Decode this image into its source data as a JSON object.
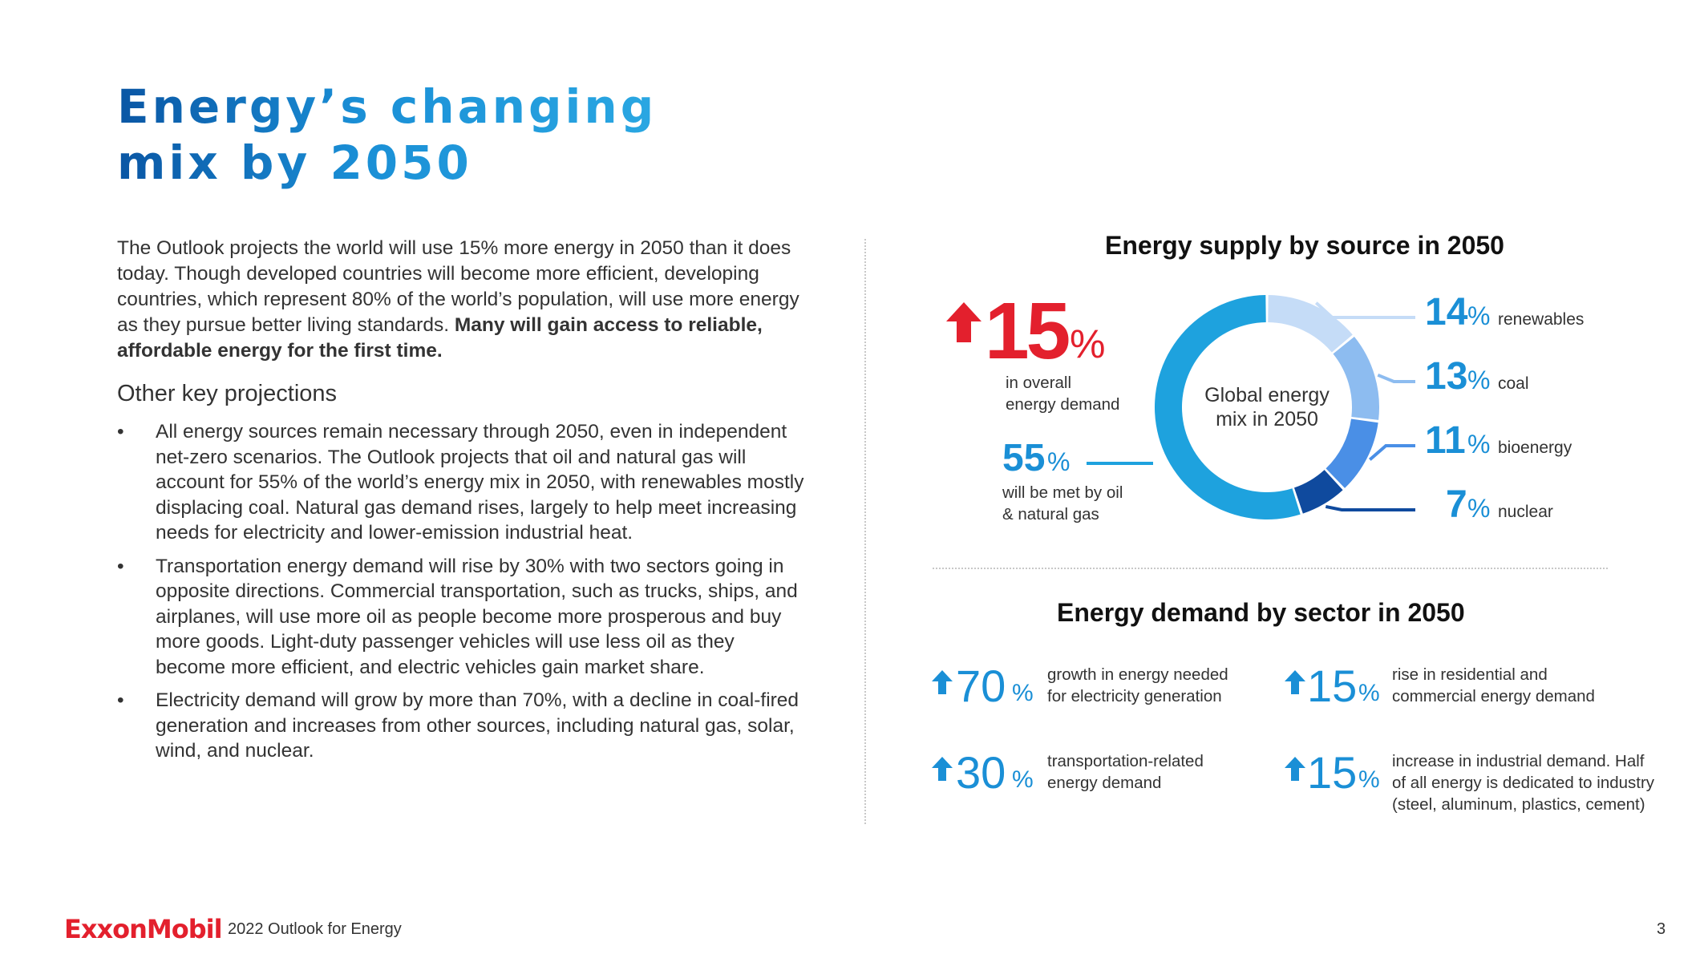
{
  "title": {
    "line1": "Energy’s changing",
    "line2": "mix by 2050"
  },
  "intro": {
    "text": "The Outlook projects the world will use 15% more energy in 2050 than it does today. Though developed countries will become more efficient, developing countries, which represent 80% of the world’s population, will use more energy as they pursue better living standards. ",
    "bold": "Many will gain access to reliable, affordable energy for the first time."
  },
  "projections": {
    "heading": "Other key projections",
    "bullet_char": "•",
    "items": [
      "All energy sources remain necessary through 2050, even in independent net-zero scenarios. The Outlook projects that oil and natural gas will account for 55% of the world’s energy mix in 2050, with renewables mostly displacing coal. Natural gas demand rises, largely to help meet increasing needs for electricity and lower-emission industrial heat.",
      "Transportation energy demand will rise by 30% with two sectors going in opposite directions. Commercial transportation, such as trucks, ships, and airplanes, will use more oil as people become more prosperous and buy more goods. Light-duty passenger vehicles will use less oil as they become more efficient, and electric vehicles gain market share.",
      "Electricity demand will grow by more than 70%, with a decline in coal-fired generation and increases from other sources, including natural gas, solar, wind, and nuclear."
    ]
  },
  "supply": {
    "heading": "Energy supply by source in 2050",
    "overall": {
      "value": "15",
      "pct": "%",
      "label_line1": "in overall",
      "label_line2": "energy demand"
    },
    "oil_gas": {
      "value": "55",
      "pct": "%",
      "label_line1": "will be met by oil",
      "label_line2": "& natural gas"
    },
    "donut_center_line1": "Global energy",
    "donut_center_line2": "mix in 2050",
    "colors": {
      "oil_gas": "#1ea2de",
      "renewables": "#c5dcf7",
      "coal": "#8dbcf0",
      "bioenergy": "#4a8fe6",
      "nuclear": "#0f4a9e",
      "red": "#e3202d",
      "blue": "#1a8fd6"
    }
  },
  "chart_data": {
    "type": "pie",
    "categories": [
      "oil & natural gas",
      "renewables",
      "coal",
      "bioenergy",
      "nuclear"
    ],
    "values": [
      55,
      14,
      13,
      11,
      7
    ],
    "series": [
      {
        "value": "14",
        "pct": "%",
        "label": "renewables"
      },
      {
        "value": "13",
        "pct": "%",
        "label": "coal"
      },
      {
        "value": "11",
        "pct": "%",
        "label": "bioenergy"
      },
      {
        "value": "7",
        "pct": "%",
        "label": "nuclear"
      }
    ]
  },
  "demand": {
    "heading": "Energy demand by sector in 2050",
    "items": [
      {
        "value": "70",
        "pct": "%",
        "line1": "growth in energy needed",
        "line2": "for electricity generation",
        "line3": ""
      },
      {
        "value": "15",
        "pct": "%",
        "line1": "rise in residential and",
        "line2": "commercial energy demand",
        "line3": ""
      },
      {
        "value": "30",
        "pct": "%",
        "line1": "transportation-related",
        "line2": "energy demand",
        "line3": ""
      },
      {
        "value": "15",
        "pct": "%",
        "line1": "increase in industrial demand. Half",
        "line2": "of all energy is dedicated to industry",
        "line3": "(steel, aluminum, plastics, cement)"
      }
    ]
  },
  "footer": {
    "logo": "ExxonMobil",
    "publication": "2022 Outlook for Energy",
    "page": "3"
  }
}
